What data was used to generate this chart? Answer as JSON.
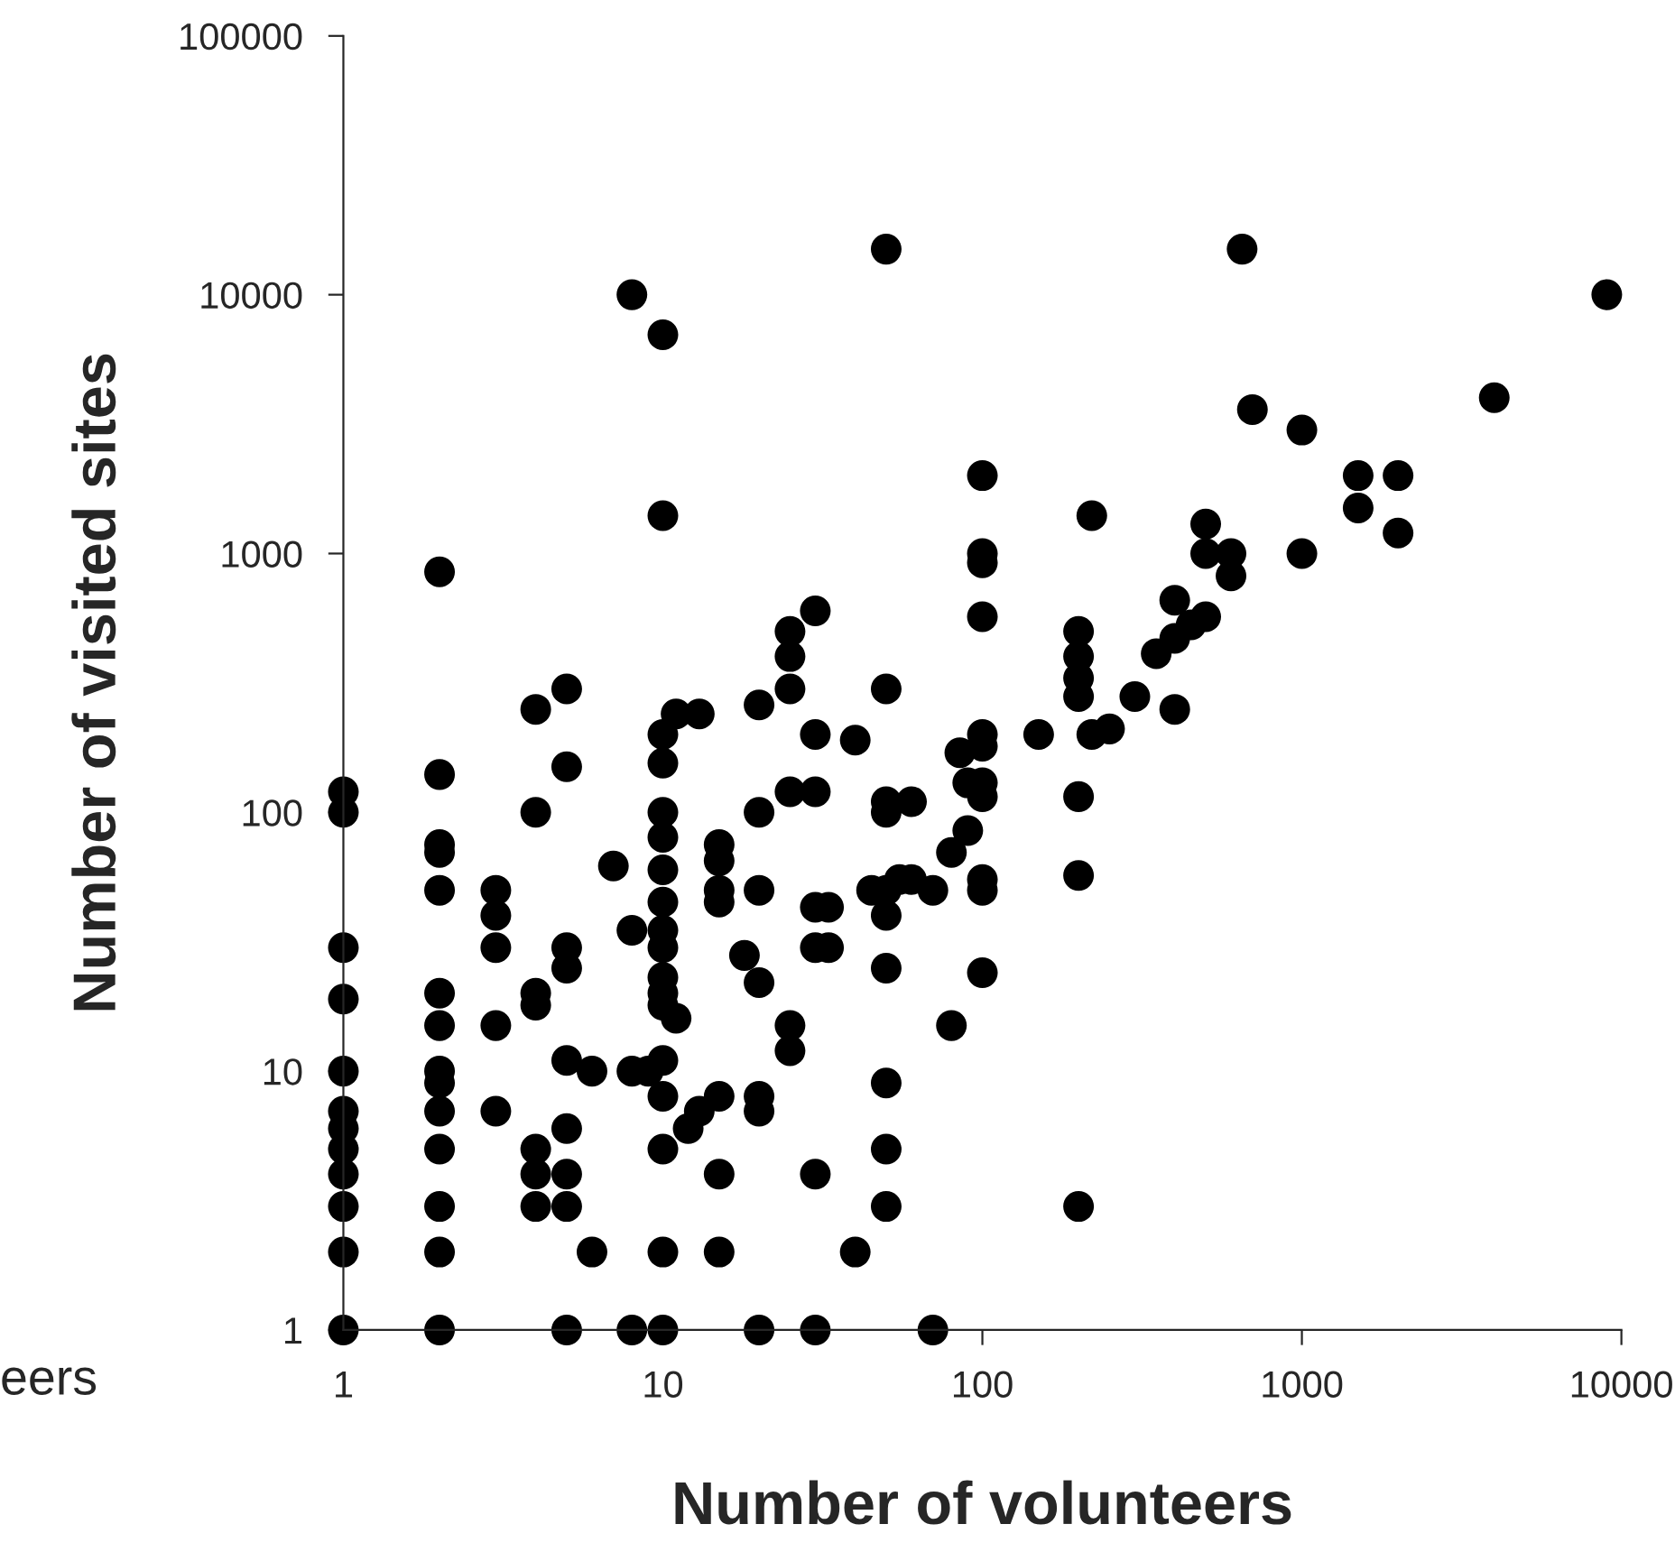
{
  "chart_data": {
    "type": "scatter",
    "xlabel": "Number of volunteers",
    "ylabel": "Number of visited sites",
    "annotations": [
      "eers"
    ],
    "log": "xy",
    "marker": "circle",
    "grid": false,
    "legend": false,
    "xlim": [
      1,
      10000
    ],
    "xticks": [
      1,
      10,
      100,
      1000,
      10000
    ],
    "ylim": [
      1,
      100000
    ],
    "yticks": [
      1,
      10,
      100,
      1000,
      10000,
      100000
    ],
    "series": [
      {
        "color": "#000000",
        "x": [
          1,
          1,
          1,
          1,
          1,
          1,
          1,
          1,
          1,
          1,
          1,
          1,
          2,
          2,
          2,
          2,
          2,
          2,
          2,
          2,
          2,
          2,
          2,
          2,
          2,
          2,
          3,
          3,
          3,
          3,
          3,
          4,
          4,
          4,
          4,
          4,
          4,
          4,
          5,
          5,
          5,
          5,
          5,
          5,
          5,
          5,
          5,
          6,
          6,
          7,
          8,
          8,
          8,
          8,
          9,
          10,
          10,
          10,
          10,
          10,
          10,
          10,
          10,
          10,
          10,
          10,
          10,
          10,
          10,
          10,
          10,
          10,
          10,
          11,
          11,
          12,
          13,
          13,
          15,
          15,
          15,
          15,
          15,
          15,
          15,
          18,
          20,
          20,
          20,
          20,
          20,
          20,
          20,
          25,
          25,
          25,
          25,
          25,
          25,
          30,
          30,
          30,
          30,
          30,
          30,
          30,
          33,
          33,
          40,
          40,
          45,
          50,
          50,
          50,
          50,
          50,
          50,
          50,
          50,
          50,
          50,
          55,
          60,
          60,
          70,
          70,
          80,
          80,
          85,
          90,
          90,
          100,
          100,
          100,
          100,
          100,
          100,
          100,
          100,
          100,
          100,
          100,
          150,
          200,
          200,
          200,
          200,
          200,
          200,
          200,
          220,
          220,
          250,
          300,
          350,
          400,
          400,
          400,
          450,
          500,
          500,
          500,
          600,
          600,
          650,
          700,
          1000,
          1000,
          1500,
          1500,
          2000,
          2000,
          4000,
          9000
        ],
        "values": [
          120,
          100,
          30,
          19,
          10,
          7,
          6,
          5,
          4,
          3,
          2,
          1,
          850,
          140,
          75,
          70,
          50,
          20,
          15,
          10,
          9,
          7,
          5,
          3,
          2,
          1,
          50,
          40,
          30,
          15,
          7,
          250,
          100,
          20,
          18,
          5,
          4,
          3,
          300,
          150,
          30,
          25,
          11,
          6,
          4,
          3,
          1,
          10,
          2,
          62,
          10000,
          35,
          10,
          1,
          10,
          7000,
          1400,
          200,
          155,
          100,
          80,
          60,
          45,
          35,
          30,
          23,
          20,
          18,
          11,
          8,
          5,
          2,
          1,
          240,
          16,
          6,
          240,
          7,
          75,
          65,
          50,
          45,
          8,
          4,
          2,
          28,
          260,
          100,
          50,
          22,
          8,
          7,
          1,
          500,
          400,
          300,
          120,
          15,
          12,
          600,
          200,
          120,
          43,
          30,
          4,
          1,
          43,
          30,
          190,
          2,
          50,
          15000,
          300,
          110,
          100,
          50,
          40,
          25,
          9,
          5,
          3,
          55,
          110,
          55,
          50,
          1,
          70,
          15,
          170,
          130,
          85,
          2000,
          1000,
          920,
          570,
          200,
          180,
          130,
          115,
          55,
          50,
          24,
          200,
          500,
          400,
          330,
          280,
          115,
          57,
          3,
          1400,
          200,
          210,
          280,
          410,
          660,
          470,
          250,
          530,
          1300,
          1000,
          570,
          1000,
          820,
          15000,
          3600,
          3000,
          1000,
          2000,
          1500,
          2000,
          1200,
          4000,
          10000
        ]
      }
    ]
  }
}
